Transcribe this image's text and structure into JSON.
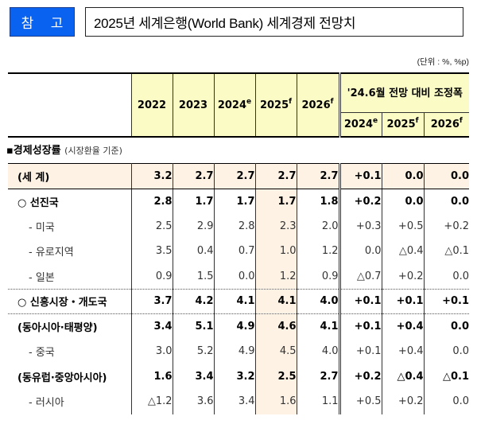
{
  "header": {
    "badge": "참 고",
    "title": "2025년 세계은행(World Bank) 세계경제 전망치",
    "unit": "(단위 : %, %p)"
  },
  "table_header": {
    "years": [
      {
        "year": "2022",
        "sup": ""
      },
      {
        "year": "2023",
        "sup": ""
      },
      {
        "year": "2024",
        "sup": "e"
      },
      {
        "year": "2025",
        "sup": "f"
      },
      {
        "year": "2026",
        "sup": "f"
      }
    ],
    "adjustment_group": "'24.6월 전망 대비 조정폭",
    "adjustment_years": [
      {
        "year": "2024",
        "sup": "e"
      },
      {
        "year": "2025",
        "sup": "f"
      },
      {
        "year": "2026",
        "sup": "f"
      }
    ]
  },
  "section": {
    "title": "▪경제성장률",
    "note": "(시장환율 기준)"
  },
  "rows": [
    {
      "label": "(세    계)",
      "values": [
        "3.2",
        "2.7",
        "2.7",
        "2.7",
        "2.7",
        "+0.1",
        "0.0",
        "0.0"
      ]
    },
    {
      "label": "○ 선진국",
      "values": [
        "2.8",
        "1.7",
        "1.7",
        "1.7",
        "1.8",
        "+0.2",
        "0.0",
        "0.0"
      ]
    },
    {
      "label": "- 미국",
      "values": [
        "2.5",
        "2.9",
        "2.8",
        "2.3",
        "2.0",
        "+0.3",
        "+0.5",
        "+0.2"
      ]
    },
    {
      "label": "- 유로지역",
      "values": [
        "3.5",
        "0.4",
        "0.7",
        "1.0",
        "1.2",
        "0.0",
        "△0.4",
        "△0.1"
      ]
    },
    {
      "label": "- 일본",
      "values": [
        "0.9",
        "1.5",
        "0.0",
        "1.2",
        "0.9",
        "△0.7",
        "+0.2",
        "0.0"
      ]
    },
    {
      "label": "○ 신흥시장・개도국",
      "values": [
        "3.7",
        "4.2",
        "4.1",
        "4.1",
        "4.0",
        "+0.1",
        "+0.1",
        "+0.1"
      ]
    },
    {
      "label": "(동아시아·태평양)",
      "values": [
        "3.4",
        "5.1",
        "4.9",
        "4.6",
        "4.1",
        "+0.1",
        "+0.4",
        "0.0"
      ]
    },
    {
      "label": "- 중국",
      "values": [
        "3.0",
        "5.2",
        "4.9",
        "4.5",
        "4.0",
        "+0.1",
        "+0.4",
        "0.0"
      ]
    },
    {
      "label": "(동유럽·중앙아시아)",
      "values": [
        "1.6",
        "3.4",
        "3.2",
        "2.5",
        "2.7",
        "+0.2",
        "△0.4",
        "△0.1"
      ]
    },
    {
      "label": "- 러시아",
      "values": [
        "△1.2",
        "3.6",
        "3.4",
        "1.6",
        "1.1",
        "+0.5",
        "+0.2",
        "0.0"
      ]
    }
  ]
}
